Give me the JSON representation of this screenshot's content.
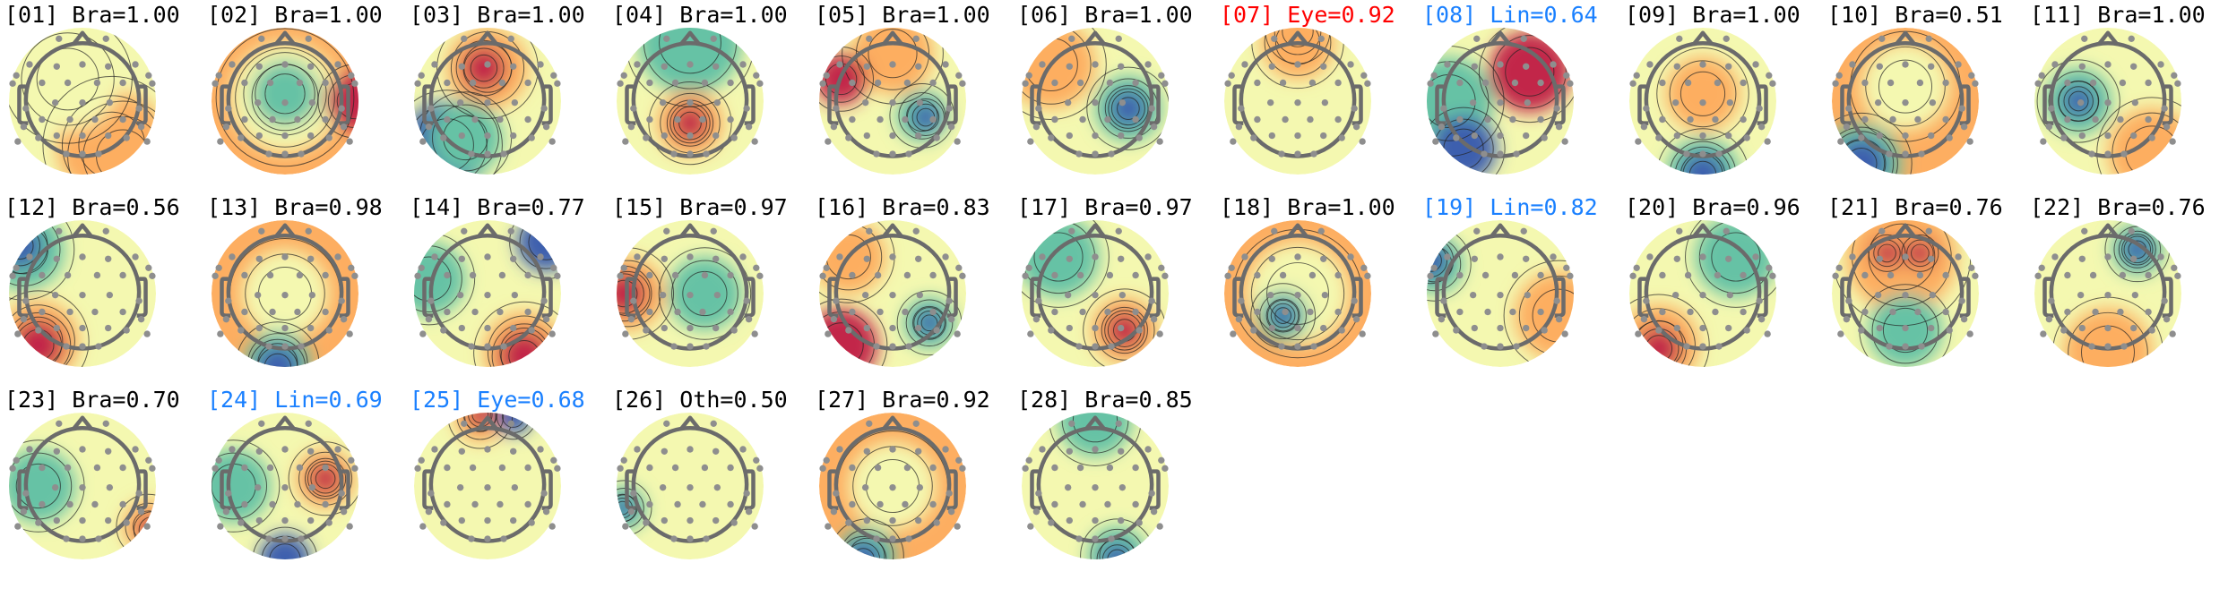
{
  "colors": {
    "default_title": "#000000",
    "eye_flag": "#ff0000",
    "other_flag": "#1a80ff"
  },
  "colormap": [
    "#3d5fae",
    "#66c2a5",
    "#f4f8b0",
    "#fdae61",
    "#c2254a"
  ],
  "chart_data": {
    "type": "heatmap",
    "subtype": "scalp topographic maps (ICA components)",
    "grid": false,
    "components": [
      {
        "title": "[01] Bra=1.00",
        "id": "01",
        "label": "Bra",
        "score": 1.0,
        "color": "#000000"
      },
      {
        "title": "[02] Bra=1.00",
        "id": "02",
        "label": "Bra",
        "score": 1.0,
        "color": "#000000"
      },
      {
        "title": "[03] Bra=1.00",
        "id": "03",
        "label": "Bra",
        "score": 1.0,
        "color": "#000000"
      },
      {
        "title": "[04] Bra=1.00",
        "id": "04",
        "label": "Bra",
        "score": 1.0,
        "color": "#000000"
      },
      {
        "title": "[05] Bra=1.00",
        "id": "05",
        "label": "Bra",
        "score": 1.0,
        "color": "#000000"
      },
      {
        "title": "[06] Bra=1.00",
        "id": "06",
        "label": "Bra",
        "score": 1.0,
        "color": "#000000"
      },
      {
        "title": "[07] Eye=0.92",
        "id": "07",
        "label": "Eye",
        "score": 0.92,
        "color": "#ff0000"
      },
      {
        "title": "[08] Lin=0.64",
        "id": "08",
        "label": "Lin",
        "score": 0.64,
        "color": "#1a80ff"
      },
      {
        "title": "[09] Bra=1.00",
        "id": "09",
        "label": "Bra",
        "score": 1.0,
        "color": "#000000"
      },
      {
        "title": "[10] Bra=0.51",
        "id": "10",
        "label": "Bra",
        "score": 0.51,
        "color": "#000000"
      },
      {
        "title": "[11] Bra=1.00",
        "id": "11",
        "label": "Bra",
        "score": 1.0,
        "color": "#000000"
      },
      {
        "title": "[12] Bra=0.56",
        "id": "12",
        "label": "Bra",
        "score": 0.56,
        "color": "#000000"
      },
      {
        "title": "[13] Bra=0.98",
        "id": "13",
        "label": "Bra",
        "score": 0.98,
        "color": "#000000"
      },
      {
        "title": "[14] Bra=0.77",
        "id": "14",
        "label": "Bra",
        "score": 0.77,
        "color": "#000000"
      },
      {
        "title": "[15] Bra=0.97",
        "id": "15",
        "label": "Bra",
        "score": 0.97,
        "color": "#000000"
      },
      {
        "title": "[16] Bra=0.83",
        "id": "16",
        "label": "Bra",
        "score": 0.83,
        "color": "#000000"
      },
      {
        "title": "[17] Bra=0.97",
        "id": "17",
        "label": "Bra",
        "score": 0.97,
        "color": "#000000"
      },
      {
        "title": "[18] Bra=1.00",
        "id": "18",
        "label": "Bra",
        "score": 1.0,
        "color": "#000000"
      },
      {
        "title": "[19] Lin=0.82",
        "id": "19",
        "label": "Lin",
        "score": 0.82,
        "color": "#1a80ff"
      },
      {
        "title": "[20] Bra=0.96",
        "id": "20",
        "label": "Bra",
        "score": 0.96,
        "color": "#000000"
      },
      {
        "title": "[21] Bra=0.76",
        "id": "21",
        "label": "Bra",
        "score": 0.76,
        "color": "#000000"
      },
      {
        "title": "[22] Bra=0.76",
        "id": "22",
        "label": "Bra",
        "score": 0.76,
        "color": "#000000"
      },
      {
        "title": "[23] Bra=0.70",
        "id": "23",
        "label": "Bra",
        "score": 0.7,
        "color": "#000000"
      },
      {
        "title": "[24] Lin=0.69",
        "id": "24",
        "label": "Lin",
        "score": 0.69,
        "color": "#1a80ff"
      },
      {
        "title": "[25] Eye=0.68",
        "id": "25",
        "label": "Eye",
        "score": 0.68,
        "color": "#1a80ff"
      },
      {
        "title": "[26] Oth=0.50",
        "id": "26",
        "label": "Oth",
        "score": 0.5,
        "color": "#000000"
      },
      {
        "title": "[27] Bra=0.92",
        "id": "27",
        "label": "Bra",
        "score": 0.92,
        "color": "#000000"
      },
      {
        "title": "[28] Bra=0.85",
        "id": "28",
        "label": "Bra",
        "score": 0.85,
        "color": "#000000"
      }
    ]
  }
}
